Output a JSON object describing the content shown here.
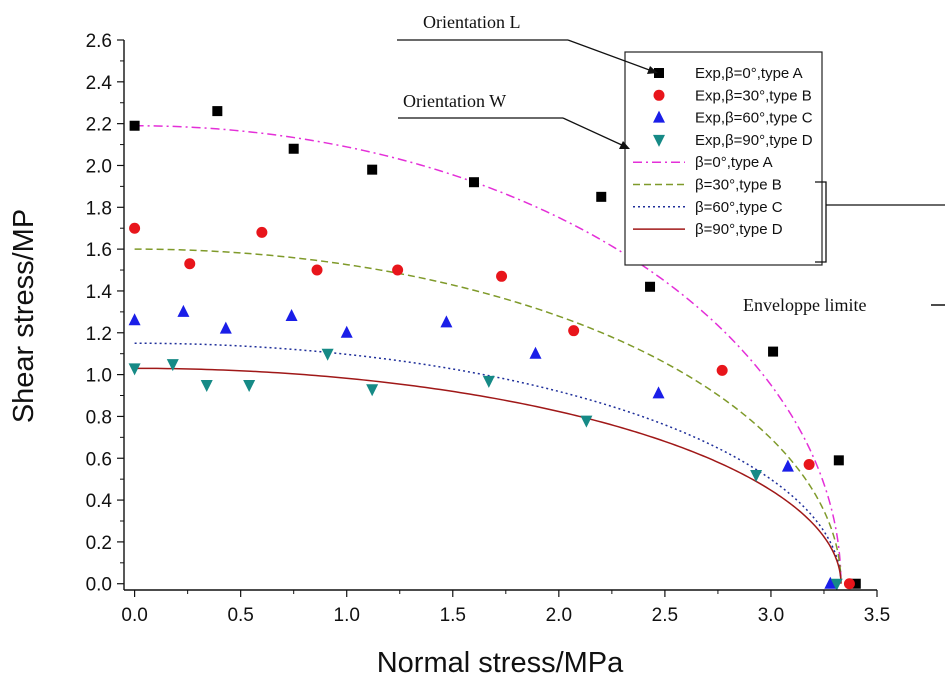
{
  "chart_data": {
    "type": "scatter",
    "xlabel": "Normal stress/MPa",
    "ylabel": "Shear stress/MP",
    "xlim": [
      -0.05,
      3.5
    ],
    "ylim": [
      -0.03,
      2.6
    ],
    "xticks": [
      "0.0",
      "0.5",
      "1.0",
      "1.5",
      "2.0",
      "2.5",
      "3.0",
      "3.5"
    ],
    "yticks": [
      "0.0",
      "0.2",
      "0.4",
      "0.6",
      "0.8",
      "1.0",
      "1.2",
      "1.4",
      "1.6",
      "1.8",
      "2.0",
      "2.2",
      "2.4",
      "2.6"
    ],
    "xtick_values": [
      0,
      0.5,
      1.0,
      1.5,
      2.0,
      2.5,
      3.0,
      3.5
    ],
    "ytick_values": [
      0,
      0.2,
      0.4,
      0.6,
      0.8,
      1.0,
      1.2,
      1.4,
      1.6,
      1.8,
      2.0,
      2.2,
      2.4,
      2.6
    ],
    "legend_position": "top-right",
    "series": [
      {
        "name": "Exp,β=0°,type A",
        "kind": "scatter",
        "marker": "square",
        "color": "#000000",
        "x": [
          0.0,
          0.39,
          0.75,
          1.12,
          1.6,
          2.2,
          2.43,
          3.01,
          3.32,
          3.4
        ],
        "y": [
          2.19,
          2.26,
          2.08,
          1.98,
          1.92,
          1.85,
          1.42,
          1.11,
          0.59,
          0.0
        ]
      },
      {
        "name": "Exp,β=30°,type B",
        "kind": "scatter",
        "marker": "circle",
        "color": "#e8151b",
        "x": [
          0.0,
          0.26,
          0.6,
          0.86,
          1.24,
          1.73,
          2.07,
          2.77,
          3.18,
          3.37
        ],
        "y": [
          1.7,
          1.53,
          1.68,
          1.5,
          1.5,
          1.47,
          1.21,
          1.02,
          0.57,
          0.0
        ]
      },
      {
        "name": "Exp,β=60°,type C",
        "kind": "scatter",
        "marker": "triangle-up",
        "color": "#1a1ee8",
        "x": [
          0.0,
          0.23,
          0.43,
          0.74,
          1.0,
          1.47,
          1.89,
          2.47,
          3.08,
          3.28
        ],
        "y": [
          1.26,
          1.3,
          1.22,
          1.28,
          1.2,
          1.25,
          1.1,
          0.91,
          0.56,
          0.0
        ]
      },
      {
        "name": "Exp,β=90°,type D",
        "kind": "scatter",
        "marker": "triangle-down",
        "color": "#168a86",
        "x": [
          0.0,
          0.18,
          0.34,
          0.54,
          0.91,
          1.12,
          1.67,
          2.13,
          2.93,
          3.31
        ],
        "y": [
          1.03,
          1.05,
          0.95,
          0.95,
          1.1,
          0.93,
          0.97,
          0.78,
          0.52,
          0.0
        ]
      },
      {
        "name": "β=0°,type A",
        "kind": "curve",
        "dash": "dash-dot",
        "color": "#e42fd8",
        "x0": 3.33,
        "y0": 2.19
      },
      {
        "name": "β=30°,type B",
        "kind": "curve",
        "dash": "dash",
        "color": "#7f9a2a",
        "x0": 3.33,
        "y0": 1.6
      },
      {
        "name": "β=60°,type C",
        "kind": "curve",
        "dash": "dot",
        "color": "#1f2f9a",
        "x0": 3.33,
        "y0": 1.15
      },
      {
        "name": "β=90°,type D",
        "kind": "curve",
        "dash": "solid",
        "color": "#a01818",
        "x0": 3.33,
        "y0": 1.03
      }
    ],
    "annotations": [
      {
        "text": "Orientation L"
      },
      {
        "text": "Orientation W"
      },
      {
        "text": "Enveloppe limite"
      }
    ]
  }
}
